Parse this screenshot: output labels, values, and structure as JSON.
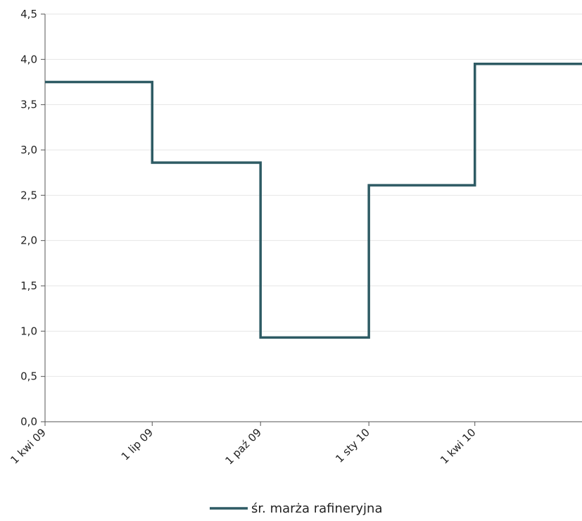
{
  "chart_data": {
    "type": "line",
    "step": true,
    "title": "",
    "xlabel": "",
    "ylabel": "",
    "ylim": [
      0,
      4.5
    ],
    "yticks": [
      0,
      0.5,
      1.0,
      1.5,
      2.0,
      2.5,
      3.0,
      3.5,
      4.0,
      4.5
    ],
    "ytick_labels": [
      "0,0",
      "0,5",
      "1,0",
      "1,5",
      "2,0",
      "2,5",
      "3,0",
      "3,5",
      "4,0",
      "4,5"
    ],
    "xtick_labels": [
      "1 kwi 09",
      "1 lip 09",
      "1 paź 09",
      "1 sty 10",
      "1 kwi 10"
    ],
    "grid": true,
    "legend_position": "bottom",
    "series": [
      {
        "name": "śr. marża rafineryjna",
        "color": "#2e5b64",
        "points": [
          {
            "x": "2009-04-01",
            "y": 3.75
          },
          {
            "x": "2009-07-01",
            "y": 2.86
          },
          {
            "x": "2009-10-01",
            "y": 0.93
          },
          {
            "x": "2010-01-01",
            "y": 2.61
          },
          {
            "x": "2010-04-01",
            "y": 3.95
          },
          {
            "x": "2010-07-01",
            "y": 3.95
          }
        ]
      }
    ]
  }
}
